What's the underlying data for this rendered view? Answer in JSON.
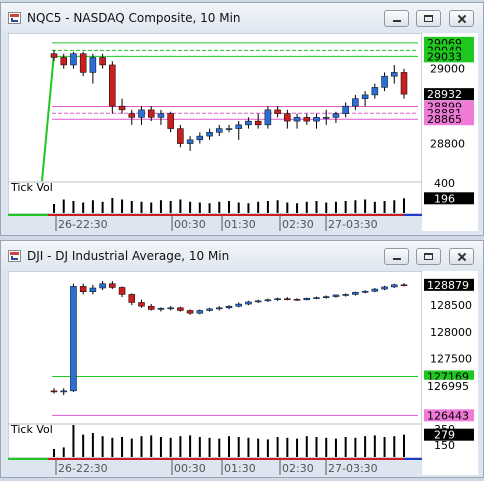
{
  "windows": [
    {
      "title": "NQC5 - NASDAQ Composite, 10 Min",
      "volume_label": "Tick Vol",
      "price_labels": [
        "29069",
        "29049",
        "29033",
        "28932",
        "28899",
        "28881",
        "28865"
      ],
      "price_ticks": [
        "29000",
        "28900",
        "28800"
      ],
      "volume_ticks": [
        "400",
        "196"
      ],
      "time_ticks": [
        "26-22:30",
        "00:30",
        "01:30",
        "02:30",
        "27-03:30"
      ],
      "colors": {
        "up": "#2b6fd6",
        "down": "#c81e1e",
        "resistance": "#1ec81e",
        "support": "#e05ad0",
        "current": "#000000"
      }
    },
    {
      "title": "DJI - DJ Industrial Average, 10 Min",
      "volume_label": "Tick Vol",
      "price_labels": [
        "128908",
        "128879",
        "127169",
        "126995",
        "126443"
      ],
      "price_ticks": [
        "128500",
        "128000",
        "127500",
        "127000"
      ],
      "volume_ticks": [
        "350",
        "279",
        "150"
      ],
      "time_ticks": [
        "26-22:30",
        "00:30",
        "01:30",
        "02:30",
        "27-03:30"
      ],
      "colors": {
        "up": "#2b6fd6",
        "down": "#c81e1e",
        "resistance": "#1ec81e",
        "support": "#e05ad0",
        "current": "#000000"
      }
    }
  ],
  "chart_data": [
    {
      "type": "candlestick",
      "title": "NQC5 - NASDAQ Composite, 10 Min",
      "ylim": [
        28700,
        29090
      ],
      "levels": [
        29069,
        29049,
        29033,
        28932,
        28899,
        28881,
        28865
      ],
      "candles": [
        [
          29040,
          29050,
          29020,
          29030
        ],
        [
          29030,
          29040,
          29000,
          29010
        ],
        [
          29010,
          29045,
          29000,
          29040
        ],
        [
          29040,
          29045,
          28980,
          28990
        ],
        [
          28990,
          29040,
          28960,
          29030
        ],
        [
          29030,
          29040,
          29000,
          29010
        ],
        [
          29010,
          29020,
          28880,
          28900
        ],
        [
          28900,
          28920,
          28880,
          28890
        ],
        [
          28880,
          28890,
          28850,
          28870
        ],
        [
          28870,
          28900,
          28850,
          28890
        ],
        [
          28890,
          28900,
          28860,
          28870
        ],
        [
          28870,
          28890,
          28850,
          28880
        ],
        [
          28880,
          28885,
          28830,
          28840
        ],
        [
          28840,
          28850,
          28790,
          28800
        ],
        [
          28800,
          28820,
          28780,
          28810
        ],
        [
          28810,
          28830,
          28800,
          28820
        ],
        [
          28820,
          28840,
          28810,
          28830
        ],
        [
          28830,
          28850,
          28820,
          28840
        ],
        [
          28840,
          28850,
          28830,
          28840
        ],
        [
          28840,
          28860,
          28810,
          28850
        ],
        [
          28850,
          28870,
          28840,
          28860
        ],
        [
          28860,
          28880,
          28840,
          28850
        ],
        [
          28850,
          28900,
          28840,
          28890
        ],
        [
          28890,
          28900,
          28870,
          28880
        ],
        [
          28880,
          28890,
          28840,
          28860
        ],
        [
          28860,
          28880,
          28840,
          28870
        ],
        [
          28870,
          28880,
          28850,
          28860
        ],
        [
          28860,
          28880,
          28840,
          28870
        ],
        [
          28870,
          28890,
          28850,
          28870
        ],
        [
          28870,
          28885,
          28855,
          28880
        ],
        [
          28880,
          28910,
          28870,
          28900
        ],
        [
          28900,
          28930,
          28890,
          28920
        ],
        [
          28920,
          28940,
          28900,
          28930
        ],
        [
          28930,
          28960,
          28920,
          28950
        ],
        [
          28950,
          28990,
          28940,
          28980
        ],
        [
          28980,
          29010,
          28960,
          28990
        ],
        [
          28990,
          29000,
          28920,
          28932
        ]
      ],
      "volume_range": [
        0,
        400
      ],
      "volume": [
        120,
        180,
        160,
        140,
        170,
        150,
        200,
        180,
        160,
        150,
        140,
        170,
        160,
        180,
        150,
        140,
        130,
        150,
        160,
        140,
        130,
        150,
        160,
        170,
        140,
        130,
        150,
        160,
        140,
        150,
        160,
        170,
        180,
        150,
        160,
        170,
        196
      ]
    },
    {
      "type": "candlestick",
      "title": "DJI - DJ Industrial Average, 10 Min",
      "ylim": [
        126300,
        129100
      ],
      "levels": [
        128908,
        128879,
        127169,
        126995,
        126443
      ],
      "candles": [
        [
          126900,
          126950,
          126850,
          126880
        ],
        [
          126880,
          126950,
          126820,
          126900
        ],
        [
          126900,
          128900,
          126880,
          128850
        ],
        [
          128850,
          128900,
          128700,
          128750
        ],
        [
          128750,
          128880,
          128700,
          128820
        ],
        [
          128820,
          128950,
          128780,
          128900
        ],
        [
          128900,
          128950,
          128800,
          128830
        ],
        [
          128830,
          128850,
          128650,
          128700
        ],
        [
          128700,
          128720,
          128500,
          128550
        ],
        [
          128550,
          128600,
          128450,
          128480
        ],
        [
          128480,
          128520,
          128400,
          128420
        ],
        [
          128420,
          128460,
          128380,
          128440
        ],
        [
          128440,
          128480,
          128400,
          128450
        ],
        [
          128450,
          128470,
          128380,
          128400
        ],
        [
          128400,
          128420,
          128320,
          128350
        ],
        [
          128350,
          128420,
          128330,
          128400
        ],
        [
          128400,
          128450,
          128380,
          128430
        ],
        [
          128430,
          128480,
          128400,
          128450
        ],
        [
          128450,
          128500,
          128420,
          128480
        ],
        [
          128480,
          128550,
          128460,
          128520
        ],
        [
          128520,
          128580,
          128500,
          128560
        ],
        [
          128560,
          128600,
          128540,
          128580
        ],
        [
          128580,
          128620,
          128560,
          128600
        ],
        [
          128600,
          128640,
          128580,
          128620
        ],
        [
          128620,
          128650,
          128590,
          128610
        ],
        [
          128610,
          128630,
          128580,
          128600
        ],
        [
          128600,
          128640,
          128590,
          128630
        ],
        [
          128630,
          128660,
          128610,
          128640
        ],
        [
          128640,
          128680,
          128620,
          128660
        ],
        [
          128660,
          128700,
          128640,
          128690
        ],
        [
          128690,
          128720,
          128660,
          128700
        ],
        [
          128700,
          128750,
          128680,
          128740
        ],
        [
          128740,
          128780,
          128720,
          128760
        ],
        [
          128760,
          128820,
          128740,
          128800
        ],
        [
          128800,
          128860,
          128780,
          128840
        ],
        [
          128840,
          128900,
          128820,
          128880
        ],
        [
          128880,
          128908,
          128850,
          128879
        ]
      ],
      "volume_range": [
        0,
        400
      ],
      "volume": [
        100,
        120,
        400,
        280,
        300,
        260,
        240,
        250,
        230,
        260,
        270,
        250,
        240,
        260,
        270,
        250,
        240,
        230,
        260,
        250,
        240,
        230,
        220,
        250,
        240,
        230,
        260,
        250,
        240,
        230,
        250,
        240,
        260,
        270,
        250,
        260,
        279
      ]
    }
  ]
}
